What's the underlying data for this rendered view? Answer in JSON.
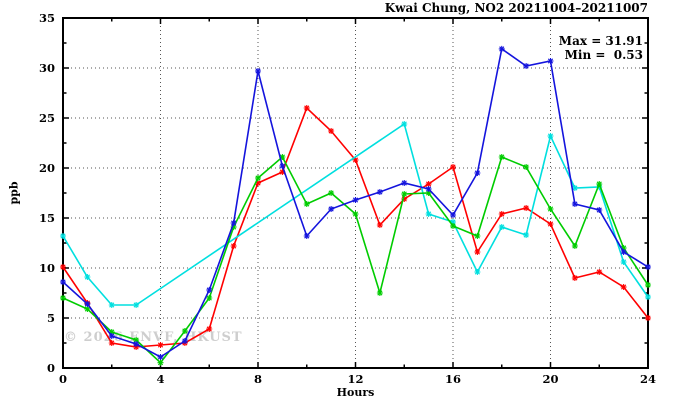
{
  "title": "Kwai Chung, NO2 20211004–20211007",
  "stats": {
    "max_label": "Max = 31.91",
    "min_label": "Min =  0.53"
  },
  "watermark": "© 2026 ENVF, HKUST",
  "axes": {
    "ylabel": "ppb",
    "xlabel": "Hours"
  },
  "chart_data": {
    "type": "line",
    "title": "Kwai Chung, NO2 20211004–20211007",
    "xlabel": "Hours",
    "ylabel": "ppb",
    "xlim": [
      0,
      24
    ],
    "ylim": [
      0,
      35
    ],
    "x_ticks": [
      0,
      4,
      8,
      12,
      16,
      20,
      24
    ],
    "y_ticks": [
      0,
      5,
      10,
      15,
      20,
      25,
      30,
      35
    ],
    "x_minor_ticks": [
      2,
      6,
      10,
      14,
      18,
      22
    ],
    "y_minor_ticks": [
      2.5,
      7.5,
      12.5,
      17.5,
      22.5,
      27.5,
      32.5
    ],
    "grid": "dotted-at-major-ticks",
    "legend_position": "none",
    "marker": "asterisk",
    "max": 31.91,
    "min": 0.53,
    "x": [
      0,
      1,
      2,
      3,
      4,
      5,
      6,
      7,
      8,
      9,
      10,
      11,
      12,
      13,
      14,
      15,
      16,
      17,
      18,
      19,
      20,
      21,
      22,
      23,
      24
    ],
    "series": [
      {
        "name": "red",
        "color": "#ff0000",
        "values": [
          10.1,
          6.5,
          2.5,
          2.1,
          2.3,
          2.5,
          3.9,
          12.2,
          18.5,
          19.6,
          26.0,
          23.7,
          20.8,
          14.3,
          16.9,
          18.4,
          20.1,
          11.6,
          15.4,
          16.0,
          14.4,
          9.0,
          9.6,
          8.1,
          5.0
        ]
      },
      {
        "name": "cyan",
        "color": "#00dfdf",
        "values": [
          13.2,
          9.1,
          6.3,
          6.3,
          null,
          null,
          null,
          null,
          null,
          null,
          null,
          null,
          null,
          null,
          24.4,
          15.4,
          14.6,
          9.6,
          14.1,
          13.3,
          23.2,
          18.0,
          18.1,
          10.6,
          7.1
        ]
      },
      {
        "name": "green",
        "color": "#00cc00",
        "values": [
          7.0,
          5.9,
          3.6,
          2.8,
          0.53,
          3.7,
          7.0,
          14.1,
          19.0,
          21.1,
          16.4,
          17.5,
          15.4,
          7.5,
          17.4,
          17.5,
          14.2,
          13.2,
          21.1,
          20.1,
          15.9,
          12.2,
          18.4,
          12.0,
          8.3
        ]
      },
      {
        "name": "blue",
        "color": "#1414dd",
        "values": [
          8.6,
          6.4,
          3.2,
          2.4,
          1.1,
          2.7,
          7.8,
          14.5,
          29.7,
          20.2,
          13.2,
          15.9,
          16.8,
          17.6,
          18.5,
          17.9,
          15.3,
          19.5,
          31.91,
          30.2,
          30.7,
          16.4,
          15.8,
          11.6,
          10.1
        ]
      }
    ]
  }
}
